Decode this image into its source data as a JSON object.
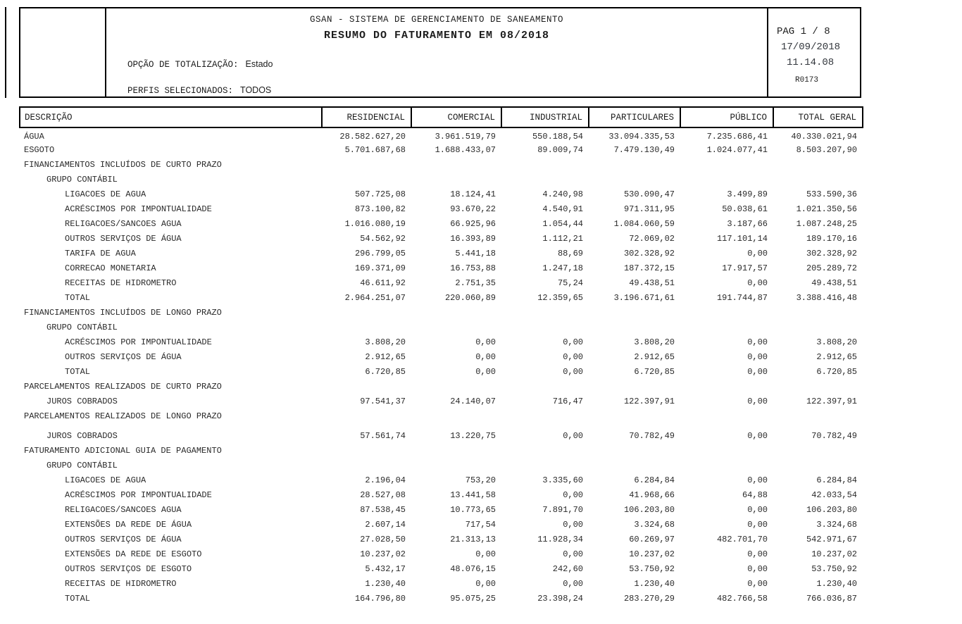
{
  "header": {
    "system_title": "GSAN - SISTEMA DE GERENCIAMENTO DE SANEAMENTO",
    "report_title": "RESUMO DO FATURAMENTO EM 08/2018",
    "totalization": {
      "label": "OPÇÃO DE TOTALIZAÇÃO:",
      "value": "Estado"
    },
    "profiles": {
      "label": "PERFIS SELECIONADOS:",
      "value": "TODOS"
    },
    "page_info": {
      "page": "PAG 1 / 8",
      "date": "17/09/2018",
      "time": "11.14.08",
      "report_code": "R0173"
    }
  },
  "table": {
    "columns": [
      "DESCRIÇÃO",
      "RESIDENCIAL",
      "COMERCIAL",
      "INDUSTRIAL",
      "PARTICULARES",
      "PÚBLICO",
      "TOTAL GERAL"
    ],
    "rows": [
      {
        "desc": "ÁGUA",
        "indent": 0,
        "values": [
          "28.582.627,20",
          "3.961.519,79",
          "550.188,54",
          "33.094.335,53",
          "7.235.686,41",
          "40.330.021,94"
        ]
      },
      {
        "desc": "ESGOTO",
        "indent": 0,
        "values": [
          "5.701.687,68",
          "1.688.433,07",
          "89.009,74",
          "7.479.130,49",
          "1.024.077,41",
          "8.503.207,90"
        ]
      },
      {
        "desc": "FINANCIAMENTOS INCLUÍDOS DE CURTO PRAZO",
        "indent": 0,
        "values": []
      },
      {
        "desc": "GRUPO CONTÁBIL",
        "indent": 1,
        "values": []
      },
      {
        "desc": "LIGACOES DE AGUA",
        "indent": 2,
        "values": [
          "507.725,08",
          "18.124,41",
          "4.240,98",
          "530.090,47",
          "3.499,89",
          "533.590,36"
        ]
      },
      {
        "desc": "ACRÉSCIMOS POR IMPONTUALIDADE",
        "indent": 2,
        "values": [
          "873.100,82",
          "93.670,22",
          "4.540,91",
          "971.311,95",
          "50.038,61",
          "1.021.350,56"
        ]
      },
      {
        "desc": "RELIGACOES/SANCOES AGUA",
        "indent": 2,
        "values": [
          "1.016.080,19",
          "66.925,96",
          "1.054,44",
          "1.084.060,59",
          "3.187,66",
          "1.087.248,25"
        ]
      },
      {
        "desc": "OUTROS SERVIÇOS DE ÁGUA",
        "indent": 2,
        "values": [
          "54.562,92",
          "16.393,89",
          "1.112,21",
          "72.069,02",
          "117.101,14",
          "189.170,16"
        ]
      },
      {
        "desc": "TARIFA DE AGUA",
        "indent": 2,
        "values": [
          "296.799,05",
          "5.441,18",
          "88,69",
          "302.328,92",
          "0,00",
          "302.328,92"
        ]
      },
      {
        "desc": "CORRECAO MONETARIA",
        "indent": 2,
        "values": [
          "169.371,09",
          "16.753,88",
          "1.247,18",
          "187.372,15",
          "17.917,57",
          "205.289,72"
        ]
      },
      {
        "desc": "RECEITAS DE HIDROMETRO",
        "indent": 2,
        "values": [
          "46.611,92",
          "2.751,35",
          "75,24",
          "49.438,51",
          "0,00",
          "49.438,51"
        ]
      },
      {
        "desc": "TOTAL",
        "indent": 2,
        "values": [
          "2.964.251,07",
          "220.060,89",
          "12.359,65",
          "3.196.671,61",
          "191.744,87",
          "3.388.416,48"
        ]
      },
      {
        "desc": "FINANCIAMENTOS INCLUÍDOS DE LONGO PRAZO",
        "indent": 0,
        "values": []
      },
      {
        "desc": "GRUPO CONTÁBIL",
        "indent": 1,
        "values": []
      },
      {
        "desc": "ACRÉSCIMOS POR IMPONTUALIDADE",
        "indent": 2,
        "values": [
          "3.808,20",
          "0,00",
          "0,00",
          "3.808,20",
          "0,00",
          "3.808,20"
        ]
      },
      {
        "desc": "OUTROS SERVIÇOS DE ÁGUA",
        "indent": 2,
        "values": [
          "2.912,65",
          "0,00",
          "0,00",
          "2.912,65",
          "0,00",
          "2.912,65"
        ]
      },
      {
        "desc": "TOTAL",
        "indent": 2,
        "values": [
          "6.720,85",
          "0,00",
          "0,00",
          "6.720,85",
          "0,00",
          "6.720,85"
        ]
      },
      {
        "desc": "PARCELAMENTOS REALIZADOS DE CURTO PRAZO",
        "indent": 0,
        "values": []
      },
      {
        "desc": "JUROS COBRADOS",
        "indent": 1,
        "values": [
          "97.541,37",
          "24.140,07",
          "716,47",
          "122.397,91",
          "0,00",
          "122.397,91"
        ]
      },
      {
        "desc": "PARCELAMENTOS REALIZADOS DE LONGO PRAZO",
        "indent": 0,
        "values": []
      },
      {
        "desc": "JUROS COBRADOS",
        "indent": 1,
        "values": [
          "57.561,74",
          "13.220,75",
          "0,00",
          "70.782,49",
          "0,00",
          "70.782,49"
        ]
      },
      {
        "desc": "FATURAMENTO ADICIONAL GUIA DE PAGAMENTO",
        "indent": 0,
        "values": []
      },
      {
        "desc": "GRUPO CONTÁBIL",
        "indent": 1,
        "values": []
      },
      {
        "desc": "LIGACOES DE AGUA",
        "indent": 2,
        "values": [
          "2.196,04",
          "753,20",
          "3.335,60",
          "6.284,84",
          "0,00",
          "6.284,84"
        ]
      },
      {
        "desc": "ACRÉSCIMOS POR IMPONTUALIDADE",
        "indent": 2,
        "values": [
          "28.527,08",
          "13.441,58",
          "0,00",
          "41.968,66",
          "64,88",
          "42.033,54"
        ]
      },
      {
        "desc": "RELIGACOES/SANCOES AGUA",
        "indent": 2,
        "values": [
          "87.538,45",
          "10.773,65",
          "7.891,70",
          "106.203,80",
          "0,00",
          "106.203,80"
        ]
      },
      {
        "desc": "EXTENSÕES DA REDE DE ÁGUA",
        "indent": 2,
        "values": [
          "2.607,14",
          "717,54",
          "0,00",
          "3.324,68",
          "0,00",
          "3.324,68"
        ]
      },
      {
        "desc": "OUTROS SERVIÇOS DE ÁGUA",
        "indent": 2,
        "values": [
          "27.028,50",
          "21.313,13",
          "11.928,34",
          "60.269,97",
          "482.701,70",
          "542.971,67"
        ]
      },
      {
        "desc": "EXTENSÕES DA REDE DE ESGOTO",
        "indent": 2,
        "values": [
          "10.237,02",
          "0,00",
          "0,00",
          "10.237,02",
          "0,00",
          "10.237,02"
        ]
      },
      {
        "desc": "OUTROS SERVIÇOS DE ESGOTO",
        "indent": 2,
        "values": [
          "5.432,17",
          "48.076,15",
          "242,60",
          "53.750,92",
          "0,00",
          "53.750,92"
        ]
      },
      {
        "desc": "RECEITAS DE HIDROMETRO",
        "indent": 2,
        "values": [
          "1.230,40",
          "0,00",
          "0,00",
          "1.230,40",
          "0,00",
          "1.230,40"
        ]
      },
      {
        "desc": "TOTAL",
        "indent": 2,
        "values": [
          "164.796,80",
          "95.075,25",
          "23.398,24",
          "283.270,29",
          "482.766,58",
          "766.036,87"
        ]
      }
    ]
  }
}
